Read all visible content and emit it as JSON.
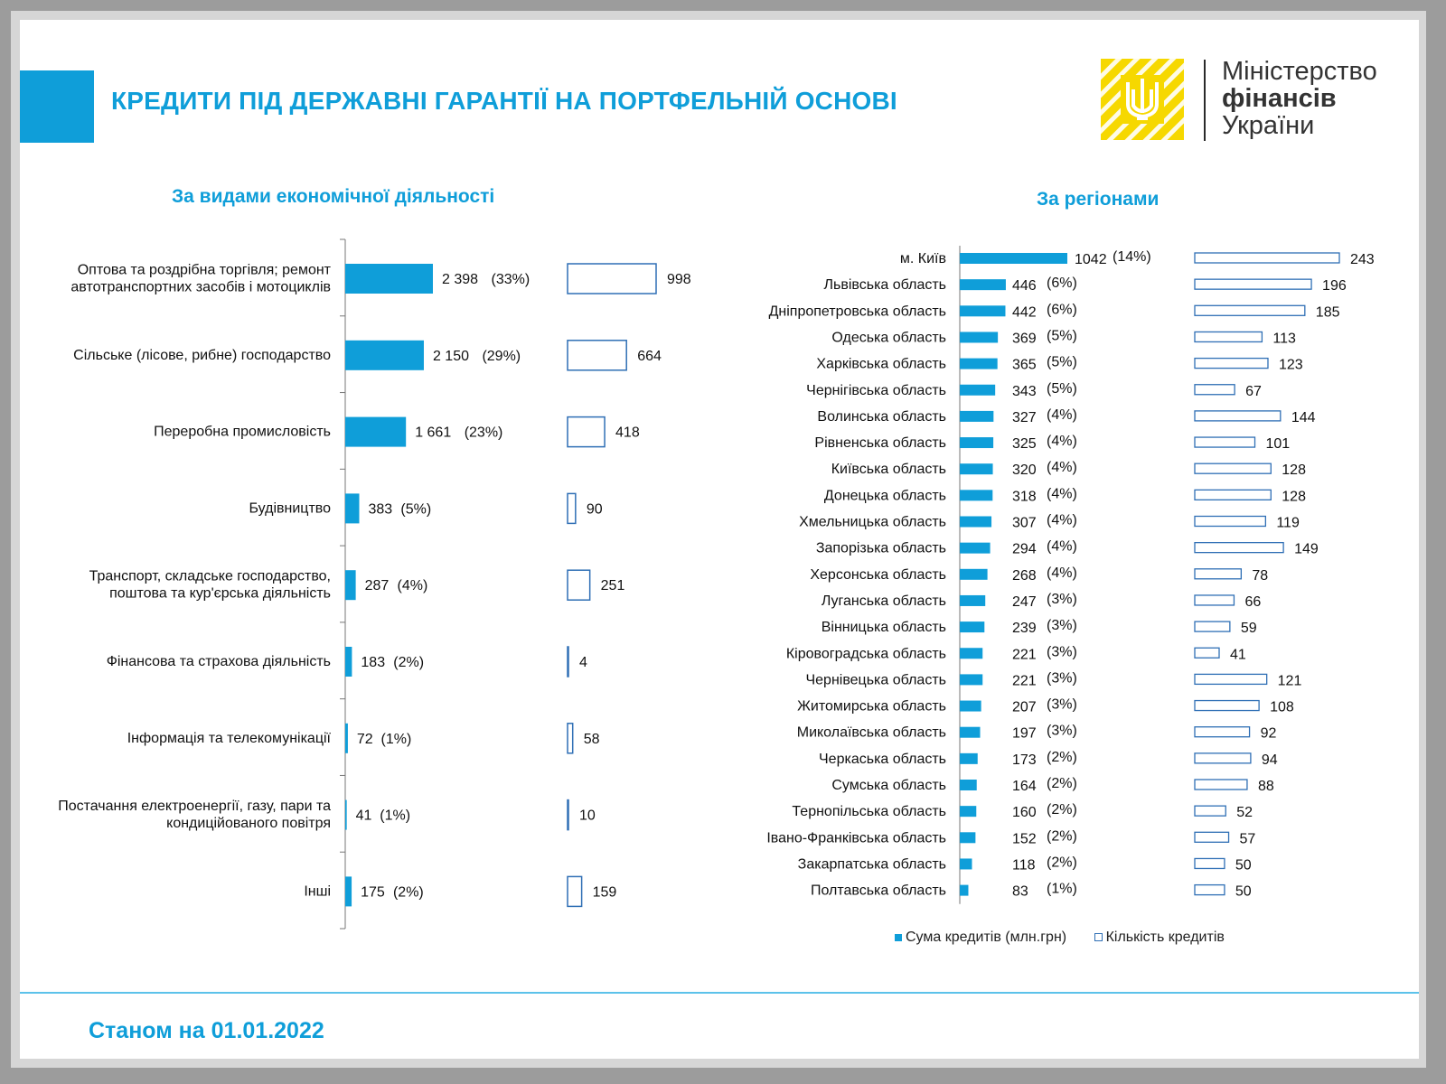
{
  "header": {
    "title": "КРЕДИТИ ПІД ДЕРЖАВНІ ГАРАНТІЇ НА ПОРТФЕЛЬНІЙ ОСНОВІ",
    "ministry_line1": "Міністерство",
    "ministry_line2": "фінансів",
    "ministry_line3": "України"
  },
  "colors": {
    "accent": "#0f9ed9",
    "logo_yellow": "#f6d800",
    "outline_bar": "#2f6fb5"
  },
  "legend": {
    "sum_label": "Сума кредитів (млн.грн)",
    "count_label": "Кількість кредитів"
  },
  "footer": {
    "date": "Станом на 01.01.2022"
  },
  "chart_data": [
    {
      "type": "bar",
      "orientation": "horizontal",
      "title": "За видами економічної діяльності",
      "categories": [
        "Оптова та роздрібна торгівля; ремонт автотранспортних засобів і мотоциклів",
        "Сільське (лісове, рибне) господарство",
        "Переробна промисловість",
        "Будівництво",
        "Транспорт, складське господарство, поштова та кур'єрська діяльність",
        "Фінансова та страхова діяльність",
        "Інформація та телекомунікації",
        "Постачання електроенергії, газу, пари та кондиційованого повітря",
        "Інші"
      ],
      "category_lines": [
        [
          "Оптова та роздрібна торгівля; ремонт",
          "автотранспортних засобів і мотоциклів"
        ],
        [
          "Сільське (лісове, рибне) господарство"
        ],
        [
          "Переробна промисловість"
        ],
        [
          "Будівництво"
        ],
        [
          "Транспорт, складське господарство,",
          "поштова та кур'єрська діяльність"
        ],
        [
          "Фінансова та страхова діяльність"
        ],
        [
          "Інформація та телекомунікації"
        ],
        [
          "Постачання електроенергії, газу, пари та",
          "кондиційованого повітря"
        ],
        [
          "Інші"
        ]
      ],
      "series": [
        {
          "name": "Сума кредитів (млн.грн)",
          "values": [
            2398,
            2150,
            1661,
            383,
            287,
            183,
            72,
            41,
            175
          ],
          "labels": [
            "2 398",
            "2 150",
            "1 661",
            "383",
            "287",
            "183",
            "72",
            "41",
            "175"
          ],
          "shares": [
            "(33%)",
            "(29%)",
            "(23%)",
            "(5%)",
            "(4%)",
            "(2%)",
            "(1%)",
            "(1%)",
            "(2%)"
          ]
        },
        {
          "name": "Кількість кредитів",
          "values": [
            998,
            664,
            418,
            90,
            251,
            4,
            58,
            10,
            159
          ]
        }
      ]
    },
    {
      "type": "bar",
      "orientation": "horizontal",
      "title": "За регіонами",
      "categories": [
        "м. Київ",
        "Львівська область",
        "Дніпропетровська область",
        "Одеська область",
        "Харківська область",
        "Чернігівська область",
        "Волинська область",
        "Рівненська область",
        "Київська область",
        "Донецька область",
        "Хмельницька область",
        "Запорізька область",
        "Херсонська область",
        "Луганська область",
        "Вінницька область",
        "Кіровоградська область",
        "Чернівецька область",
        "Житомирська область",
        "Миколаївська область",
        "Черкаська область",
        "Сумська область",
        "Тернопільська область",
        "Івано-Франківська область",
        "Закарпатська область",
        "Полтавська область"
      ],
      "series": [
        {
          "name": "Сума кредитів (млн.грн)",
          "values": [
            1042,
            446,
            442,
            369,
            365,
            343,
            327,
            325,
            320,
            318,
            307,
            294,
            268,
            247,
            239,
            221,
            221,
            207,
            197,
            173,
            164,
            160,
            152,
            118,
            83
          ],
          "shares": [
            "(14%)",
            "(6%)",
            "(6%)",
            "(5%)",
            "(5%)",
            "(5%)",
            "(4%)",
            "(4%)",
            "(4%)",
            "(4%)",
            "(4%)",
            "(4%)",
            "(4%)",
            "(3%)",
            "(3%)",
            "(3%)",
            "(3%)",
            "(3%)",
            "(3%)",
            "(2%)",
            "(2%)",
            "(2%)",
            "(2%)",
            "(2%)",
            "(1%)"
          ]
        },
        {
          "name": "Кількість кредитів",
          "values": [
            243,
            196,
            185,
            113,
            123,
            67,
            144,
            101,
            128,
            128,
            119,
            149,
            78,
            66,
            59,
            41,
            121,
            108,
            92,
            94,
            88,
            52,
            57,
            50,
            50
          ]
        }
      ]
    }
  ]
}
